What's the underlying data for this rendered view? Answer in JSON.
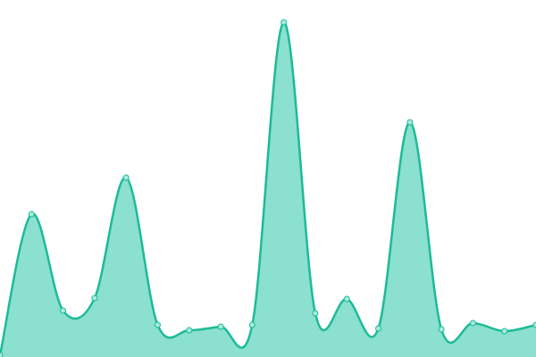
{
  "chart_data": {
    "type": "area",
    "title": "",
    "xlabel": "",
    "ylabel": "",
    "x": [
      0,
      1,
      2,
      3,
      4,
      5,
      6,
      7,
      8,
      9,
      10,
      11,
      12,
      13,
      14,
      15,
      16,
      17
    ],
    "values": [
      2,
      160,
      52,
      66,
      201,
      36,
      30,
      34,
      36,
      375,
      49,
      65,
      32,
      263,
      31,
      38,
      29,
      36
    ],
    "ylim": [
      0,
      400
    ],
    "grid": false,
    "axes_visible": false,
    "curve": "smooth",
    "colors": {
      "line": "#1dbb96",
      "fill": "#8be0cf",
      "point_fill": "#a8ebdc",
      "point_stroke": "#1dbb96"
    }
  }
}
